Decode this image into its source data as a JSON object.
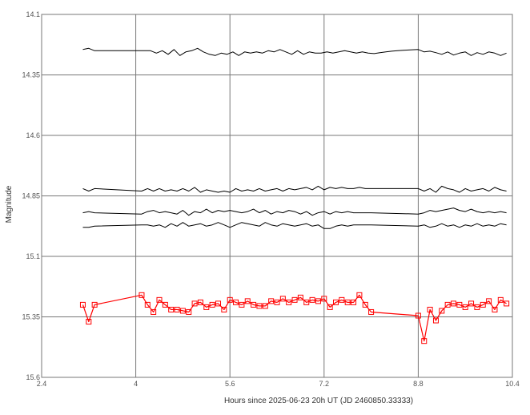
{
  "chart_data": {
    "type": "line",
    "xlabel": "Hours since 2025-06-23 20h UT (JD 2460850.33333)",
    "ylabel": "Magnitude",
    "xlim": [
      2.4,
      10.4
    ],
    "ylim": [
      15.6,
      14.1
    ],
    "y_inverted": true,
    "grid": true,
    "x_ticks": [
      2.4,
      4,
      5.6,
      7.2,
      8.8,
      10.4
    ],
    "x_tick_labels": [
      "2.4",
      "4",
      "5.6",
      "7.2",
      "8.8",
      "10.4"
    ],
    "y_ticks": [
      14.1,
      14.35,
      14.6,
      14.85,
      15.1,
      15.35,
      15.6
    ],
    "y_tick_labels": [
      "14.1",
      "14.35",
      "14.6",
      "14.85",
      "15.1",
      "15.35",
      "15.6"
    ],
    "colors": {
      "target": "#ff0000",
      "comparison": "#000000",
      "grid": "#777777"
    },
    "series": [
      {
        "style": "black-line",
        "x": [
          3.1,
          3.2,
          3.3,
          4.1,
          4.25,
          4.35,
          4.45,
          4.55,
          4.65,
          4.75,
          4.85,
          4.95,
          5.05,
          5.15,
          5.25,
          5.35,
          5.45,
          5.55,
          5.65,
          5.75,
          5.85,
          5.95,
          6.05,
          6.15,
          6.25,
          6.35,
          6.45,
          6.55,
          6.65,
          6.75,
          6.85,
          6.95,
          7.05,
          7.15,
          7.25,
          7.35,
          7.45,
          7.55,
          7.65,
          7.75,
          7.85,
          7.95,
          8.05,
          8.15,
          8.25,
          8.35,
          8.45,
          8.55,
          8.8,
          8.9,
          9.0,
          9.1,
          9.2,
          9.3,
          9.4,
          9.5,
          9.6,
          9.7,
          9.8,
          9.9,
          10.0,
          10.1,
          10.2,
          10.3
        ],
        "y": [
          14.245,
          14.24,
          14.25,
          14.25,
          14.25,
          14.26,
          14.25,
          14.265,
          14.245,
          14.27,
          14.255,
          14.25,
          14.24,
          14.255,
          14.265,
          14.27,
          14.26,
          14.265,
          14.255,
          14.27,
          14.255,
          14.26,
          14.255,
          14.26,
          14.25,
          14.255,
          14.245,
          14.255,
          14.265,
          14.25,
          14.265,
          14.255,
          14.26,
          14.26,
          14.255,
          14.26,
          14.255,
          14.25,
          14.255,
          14.26,
          14.255,
          14.26,
          14.262,
          14.258,
          14.255,
          14.252,
          14.25,
          14.248,
          14.245,
          14.255,
          14.252,
          14.258,
          14.265,
          14.255,
          14.268,
          14.26,
          14.255,
          14.27,
          14.258,
          14.265,
          14.255,
          14.26,
          14.27,
          14.26
        ]
      },
      {
        "style": "black-line",
        "x": [
          3.1,
          3.2,
          3.3,
          4.1,
          4.2,
          4.3,
          4.4,
          4.5,
          4.6,
          4.7,
          4.8,
          4.9,
          5.0,
          5.1,
          5.2,
          5.3,
          5.4,
          5.5,
          5.6,
          5.7,
          5.8,
          5.9,
          6.0,
          6.1,
          6.2,
          6.3,
          6.4,
          6.5,
          6.6,
          6.7,
          6.8,
          6.9,
          7.0,
          7.1,
          7.2,
          7.3,
          7.4,
          7.5,
          7.6,
          7.7,
          7.8,
          7.9,
          8.0,
          8.8,
          8.9,
          9.0,
          9.1,
          9.2,
          9.3,
          9.4,
          9.5,
          9.6,
          9.7,
          9.8,
          9.9,
          10.0,
          10.1,
          10.2,
          10.3
        ],
        "y": [
          14.82,
          14.83,
          14.82,
          14.83,
          14.82,
          14.83,
          14.82,
          14.83,
          14.825,
          14.83,
          14.82,
          14.83,
          14.815,
          14.835,
          14.825,
          14.83,
          14.835,
          14.83,
          14.835,
          14.82,
          14.83,
          14.825,
          14.83,
          14.82,
          14.83,
          14.825,
          14.82,
          14.83,
          14.82,
          14.825,
          14.82,
          14.815,
          14.825,
          14.81,
          14.825,
          14.815,
          14.82,
          14.815,
          14.82,
          14.82,
          14.815,
          14.82,
          14.82,
          14.82,
          14.83,
          14.82,
          14.835,
          14.81,
          14.82,
          14.825,
          14.835,
          14.82,
          14.83,
          14.825,
          14.82,
          14.83,
          14.815,
          14.825,
          14.83
        ]
      },
      {
        "style": "black-line",
        "x": [
          3.1,
          3.2,
          3.3,
          4.1,
          4.2,
          4.3,
          4.4,
          4.5,
          4.6,
          4.7,
          4.8,
          4.9,
          5.0,
          5.1,
          5.2,
          5.3,
          5.4,
          5.5,
          5.6,
          5.7,
          5.8,
          5.9,
          6.0,
          6.1,
          6.2,
          6.3,
          6.4,
          6.5,
          6.6,
          6.7,
          6.8,
          6.9,
          7.0,
          7.1,
          7.2,
          7.3,
          7.4,
          7.5,
          7.6,
          7.7,
          7.8,
          7.9,
          8.0,
          8.8,
          8.9,
          9.0,
          9.1,
          9.2,
          9.3,
          9.4,
          9.5,
          9.6,
          9.7,
          9.8,
          9.9,
          10.0,
          10.1,
          10.2,
          10.3
        ],
        "y": [
          14.92,
          14.915,
          14.92,
          14.925,
          14.915,
          14.91,
          14.92,
          14.915,
          14.92,
          14.925,
          14.91,
          14.93,
          14.915,
          14.92,
          14.905,
          14.92,
          14.91,
          14.915,
          14.91,
          14.915,
          14.92,
          14.915,
          14.905,
          14.92,
          14.91,
          14.925,
          14.915,
          14.92,
          14.91,
          14.915,
          14.925,
          14.915,
          14.93,
          14.92,
          14.915,
          14.925,
          14.915,
          14.92,
          14.915,
          14.92,
          14.92,
          14.92,
          14.92,
          14.925,
          14.92,
          14.91,
          14.915,
          14.91,
          14.905,
          14.9,
          14.91,
          14.915,
          14.905,
          14.915,
          14.92,
          14.915,
          14.92,
          14.915,
          14.92
        ]
      },
      {
        "style": "black-line",
        "x": [
          3.1,
          3.2,
          3.3,
          4.1,
          4.2,
          4.3,
          4.4,
          4.5,
          4.6,
          4.7,
          4.8,
          4.9,
          5.0,
          5.1,
          5.2,
          5.3,
          5.4,
          5.5,
          5.6,
          5.7,
          5.8,
          5.9,
          6.0,
          6.1,
          6.2,
          6.3,
          6.4,
          6.5,
          6.6,
          6.7,
          6.8,
          6.9,
          7.0,
          7.1,
          7.2,
          7.3,
          7.4,
          7.5,
          7.6,
          7.7,
          7.8,
          7.9,
          8.0,
          8.8,
          8.9,
          9.0,
          9.1,
          9.2,
          9.3,
          9.4,
          9.5,
          9.6,
          9.7,
          9.8,
          9.9,
          10.0,
          10.1,
          10.2,
          10.3
        ],
        "y": [
          14.98,
          14.98,
          14.975,
          14.97,
          14.97,
          14.975,
          14.97,
          14.98,
          14.965,
          14.975,
          14.96,
          14.975,
          14.97,
          14.965,
          14.975,
          14.97,
          14.96,
          14.97,
          14.98,
          14.97,
          14.96,
          14.965,
          14.97,
          14.975,
          14.96,
          14.97,
          14.975,
          14.965,
          14.97,
          14.975,
          14.97,
          14.965,
          14.975,
          14.97,
          14.985,
          14.985,
          14.975,
          14.97,
          14.975,
          14.97,
          14.97,
          14.97,
          14.97,
          14.975,
          14.97,
          14.98,
          14.975,
          14.965,
          14.975,
          14.97,
          14.98,
          14.97,
          14.975,
          14.965,
          14.975,
          14.97,
          14.975,
          14.965,
          14.97
        ]
      },
      {
        "style": "red-markers",
        "x": [
          3.1,
          3.2,
          3.3,
          4.1,
          4.2,
          4.3,
          4.4,
          4.5,
          4.6,
          4.7,
          4.8,
          4.9,
          5.0,
          5.1,
          5.2,
          5.3,
          5.4,
          5.5,
          5.6,
          5.7,
          5.8,
          5.9,
          6.0,
          6.1,
          6.2,
          6.3,
          6.4,
          6.5,
          6.6,
          6.7,
          6.8,
          6.9,
          7.0,
          7.1,
          7.2,
          7.3,
          7.4,
          7.5,
          7.6,
          7.7,
          7.8,
          7.9,
          8.0,
          8.8,
          8.9,
          9.0,
          9.1,
          9.2,
          9.3,
          9.4,
          9.5,
          9.6,
          9.7,
          9.8,
          9.9,
          10.0,
          10.1,
          10.2,
          10.3
        ],
        "y": [
          15.3,
          15.37,
          15.3,
          15.26,
          15.3,
          15.33,
          15.28,
          15.3,
          15.32,
          15.32,
          15.325,
          15.33,
          15.295,
          15.29,
          15.31,
          15.3,
          15.295,
          15.32,
          15.28,
          15.29,
          15.3,
          15.285,
          15.3,
          15.305,
          15.305,
          15.285,
          15.29,
          15.275,
          15.29,
          15.28,
          15.27,
          15.29,
          15.28,
          15.285,
          15.275,
          15.31,
          15.29,
          15.28,
          15.29,
          15.29,
          15.26,
          15.3,
          15.33,
          15.345,
          15.45,
          15.32,
          15.365,
          15.325,
          15.3,
          15.295,
          15.3,
          15.31,
          15.295,
          15.31,
          15.3,
          15.285,
          15.32,
          15.28,
          15.295
        ]
      }
    ]
  }
}
